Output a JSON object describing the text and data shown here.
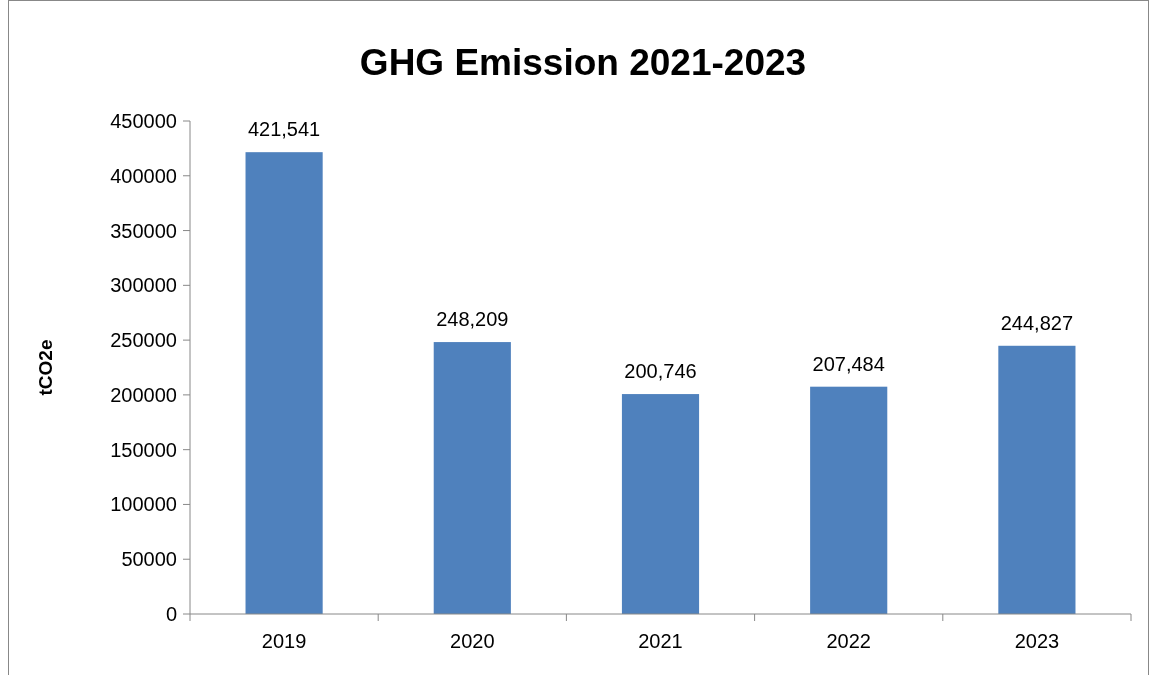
{
  "chart_data": {
    "type": "bar",
    "title": "GHG Emission 2021-2023",
    "ylabel": "tCO2e",
    "categories": [
      "2019",
      "2020",
      "2021",
      "2022",
      "2023"
    ],
    "values": [
      421541,
      248209,
      200746,
      207484,
      244827
    ],
    "value_labels": [
      "421,541",
      "248,209",
      "200,746",
      "207,484",
      "244,827"
    ],
    "color": "#4f81bd",
    "ylim": [
      0,
      450000
    ],
    "yticks": [
      0,
      50000,
      100000,
      150000,
      200000,
      250000,
      300000,
      350000,
      400000,
      450000
    ],
    "grid": false
  }
}
